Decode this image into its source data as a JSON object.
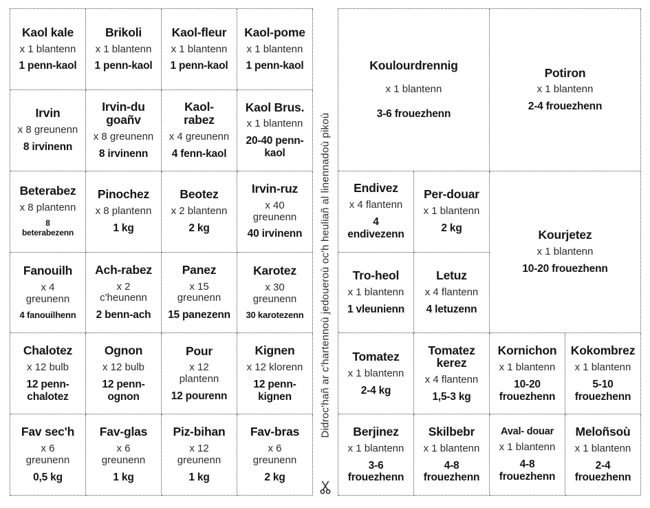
{
  "page": {
    "background": "#ffffff",
    "border_color": "#4a4a4a",
    "text_color": "#151515"
  },
  "cut_note": {
    "scissors_icon": "scissors",
    "text": "Didroc'hañ ar c'hartennoù jedoueroù oc'h heuliañ al linennadoù pikoù"
  },
  "left_grid": {
    "columns": 4,
    "rows": 6,
    "cards": [
      {
        "title": "Kaol kale",
        "qty": "x 1 blantenn",
        "yield": "1 penn-kaol"
      },
      {
        "title": "Brikoli",
        "qty": "x 1 blantenn",
        "yield": "1 penn-kaol"
      },
      {
        "title": "Kaol-fleur",
        "qty": "x 1 blantenn",
        "yield": "1 penn-kaol"
      },
      {
        "title": "Kaol-pome",
        "qty": "x 1 blantenn",
        "yield": "1 penn-kaol"
      },
      {
        "title": "Irvin",
        "qty": "x 8 greunenn",
        "yield": "8 irvinenn"
      },
      {
        "title": "Irvin-du\ngoañv",
        "qty": "x 8 greunenn",
        "yield": "8 irvinenn"
      },
      {
        "title": "Kaol-\nrabez",
        "qty": "x 4 greunenn",
        "yield": "4 fenn-kaol"
      },
      {
        "title": "Kaol Brus.",
        "qty": "x 1 blantenn",
        "yield": "20-40 penn-\nkaol"
      },
      {
        "title": "Beterabez",
        "qty": "x 8 plantenn",
        "yield": "8\nbeterabezenn",
        "yield_size": "xsmall"
      },
      {
        "title": "Pinochez",
        "qty": "x 8 plantenn",
        "yield": "1 kg"
      },
      {
        "title": "Beotez",
        "qty": "x 2 blantenn",
        "yield": "2 kg"
      },
      {
        "title": "Irvin-ruz",
        "qty": "x 40\ngreunenn",
        "yield": "40 irvinenn"
      },
      {
        "title": "Fanouilh",
        "qty": "x 4\ngreunenn",
        "yield": "4 fanouilhenn",
        "yield_size": "small"
      },
      {
        "title": "Ach-rabez",
        "qty": "x 2\nc'heunenn",
        "yield": "2 benn-ach"
      },
      {
        "title": "Panez",
        "qty": "x 15\ngreunenn",
        "yield": "15 panezenn"
      },
      {
        "title": "Karotez",
        "qty": "x 30\ngreunenn",
        "yield": "30 karotezenn",
        "yield_size": "small"
      },
      {
        "title": "Chalotez",
        "qty": "x 12 bulb",
        "yield": "12 penn-\nchalotez"
      },
      {
        "title": "Ognon",
        "qty": "x 12 bulb",
        "yield": "12 penn-\nognon"
      },
      {
        "title": "Pour",
        "qty": "x 12\nplantenn",
        "yield": "12 pourenn"
      },
      {
        "title": "Kignen",
        "qty": "x 12 klorenn",
        "yield": "12 penn-\nkignen"
      },
      {
        "title": "Fav sec'h",
        "qty": "x 6\ngreunenn",
        "yield": "0,5 kg"
      },
      {
        "title": "Fav-glas",
        "qty": "x 6\ngreunenn",
        "yield": "1 kg"
      },
      {
        "title": "Piz-bihan",
        "qty": "x 12\ngreunenn",
        "yield": "1 kg"
      },
      {
        "title": "Fav-bras",
        "qty": "x 6\ngreunenn",
        "yield": "2 kg"
      }
    ]
  },
  "right_grid": {
    "columns": 4,
    "rows": 6,
    "cards": [
      {
        "title": "Koulourdrennig",
        "qty": "x 1 blantenn",
        "yield": "3-6 frouezhenn",
        "col": 1,
        "row": 1,
        "colspan": 2,
        "rowspan": 2,
        "spread": true
      },
      {
        "title": "Potiron",
        "qty": "x 1 blantenn",
        "yield": "2-4 frouezhenn",
        "col": 3,
        "row": 1,
        "colspan": 2,
        "rowspan": 2
      },
      {
        "title": "Endivez",
        "qty": "x 4 flantenn",
        "yield": "4\nendivezenn",
        "col": 1,
        "row": 3
      },
      {
        "title": "Per-douar",
        "qty": "x 1 blantenn",
        "yield": "2 kg",
        "col": 2,
        "row": 3
      },
      {
        "title": "Kourjetez",
        "qty": "x 1 blantenn",
        "yield": "10-20 frouezhenn",
        "col": 3,
        "row": 3,
        "colspan": 2,
        "rowspan": 2
      },
      {
        "title": "Tro-heol",
        "qty": "x 1 blantenn",
        "yield": "1 vleunienn",
        "col": 1,
        "row": 4
      },
      {
        "title": "Letuz",
        "qty": "x 4 flantenn",
        "yield": "4 letuzenn",
        "col": 2,
        "row": 4
      },
      {
        "title": "Tomatez",
        "qty": "x 1 blantenn",
        "yield": "2-4 kg",
        "col": 1,
        "row": 5
      },
      {
        "title": "Tomatez\nkerez",
        "qty": "x 4 flantenn",
        "yield": "1,5-3 kg",
        "col": 2,
        "row": 5
      },
      {
        "title": "Kornichon",
        "qty": "x 1 blantenn",
        "yield": "10-20\nfrouezhenn",
        "col": 3,
        "row": 5
      },
      {
        "title": "Kokombrez",
        "qty": "x 1 blantenn",
        "yield": "5-10\nfrouezhenn",
        "col": 4,
        "row": 5
      },
      {
        "title": "Berjinez",
        "qty": "x 1 blantenn",
        "yield": "3-6\nfrouezhenn",
        "col": 1,
        "row": 6
      },
      {
        "title": "Skilbebr",
        "qty": "x 1 blantenn",
        "yield": "4-8\nfrouezhenn",
        "col": 2,
        "row": 6
      },
      {
        "title": "Aval- douar",
        "qty": "x 1 blantenn",
        "yield": "4-8\nfrouezhenn",
        "col": 3,
        "row": 6,
        "title_size": "small"
      },
      {
        "title": "Meloñsoù",
        "qty": "x 1 blantenn",
        "yield": "2-4\nfrouezhenn",
        "col": 4,
        "row": 6
      }
    ]
  }
}
